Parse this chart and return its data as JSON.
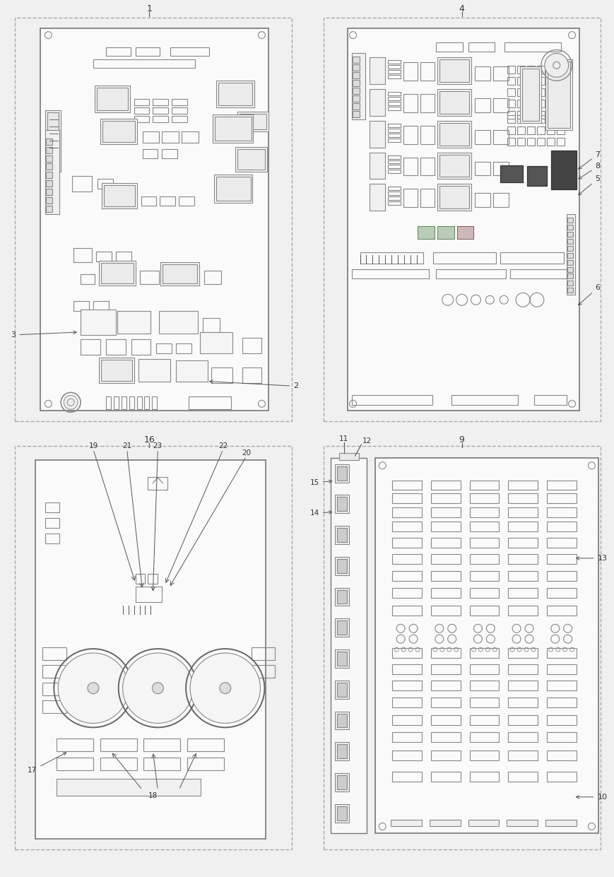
{
  "bg_color": "#f0f0f0",
  "line_color": "#888888",
  "dark_line": "#555555",
  "board_fill": "#fafafa",
  "dashed_color": "#aaaaaa",
  "label_color": "#333333"
}
